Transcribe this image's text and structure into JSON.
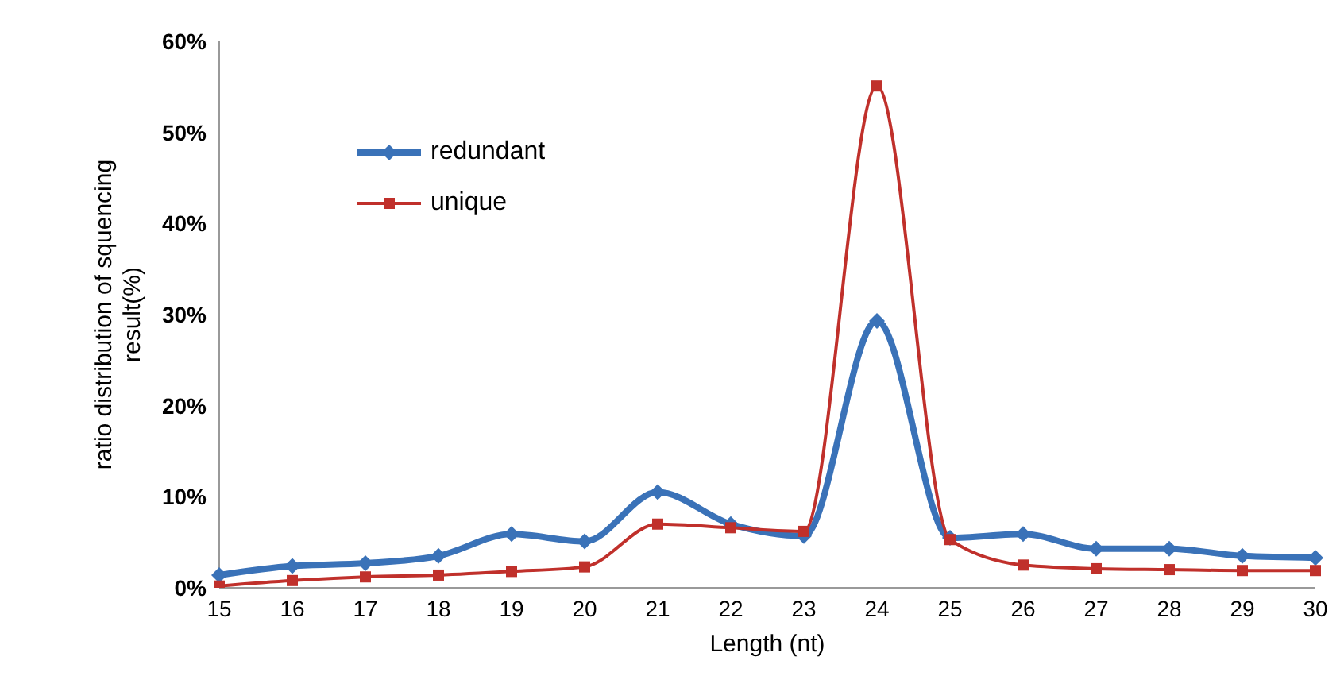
{
  "chart_data": {
    "type": "line",
    "xlabel": "Length  (nt)",
    "ylabel": "ratio distribution of squencing result(%)",
    "categories": [
      "15",
      "16",
      "17",
      "18",
      "19",
      "20",
      "21",
      "22",
      "23",
      "24",
      "25",
      "26",
      "27",
      "28",
      "29",
      "30"
    ],
    "series": [
      {
        "name": "redundant",
        "color": "#3a72b8",
        "marker": "diamond",
        "values": [
          1.4,
          2.4,
          2.7,
          3.5,
          5.9,
          5.1,
          10.5,
          7.0,
          5.7,
          29.3,
          5.5,
          5.9,
          4.3,
          4.3,
          3.5,
          3.3
        ]
      },
      {
        "name": "unique",
        "color": "#c0302b",
        "marker": "square",
        "values": [
          0.2,
          0.8,
          1.2,
          1.4,
          1.8,
          2.3,
          7.0,
          6.6,
          6.2,
          55.1,
          5.3,
          2.5,
          2.1,
          2.0,
          1.9,
          1.9
        ]
      }
    ],
    "ylim": [
      0,
      60
    ],
    "yticks": [
      {
        "value": 0,
        "label": "0%"
      },
      {
        "value": 10,
        "label": "10%"
      },
      {
        "value": 20,
        "label": "20%"
      },
      {
        "value": 30,
        "label": "30%"
      },
      {
        "value": 40,
        "label": "40%"
      },
      {
        "value": 50,
        "label": "50%"
      },
      {
        "value": 60,
        "label": "60%"
      }
    ],
    "grid": false,
    "legend": "top left"
  }
}
